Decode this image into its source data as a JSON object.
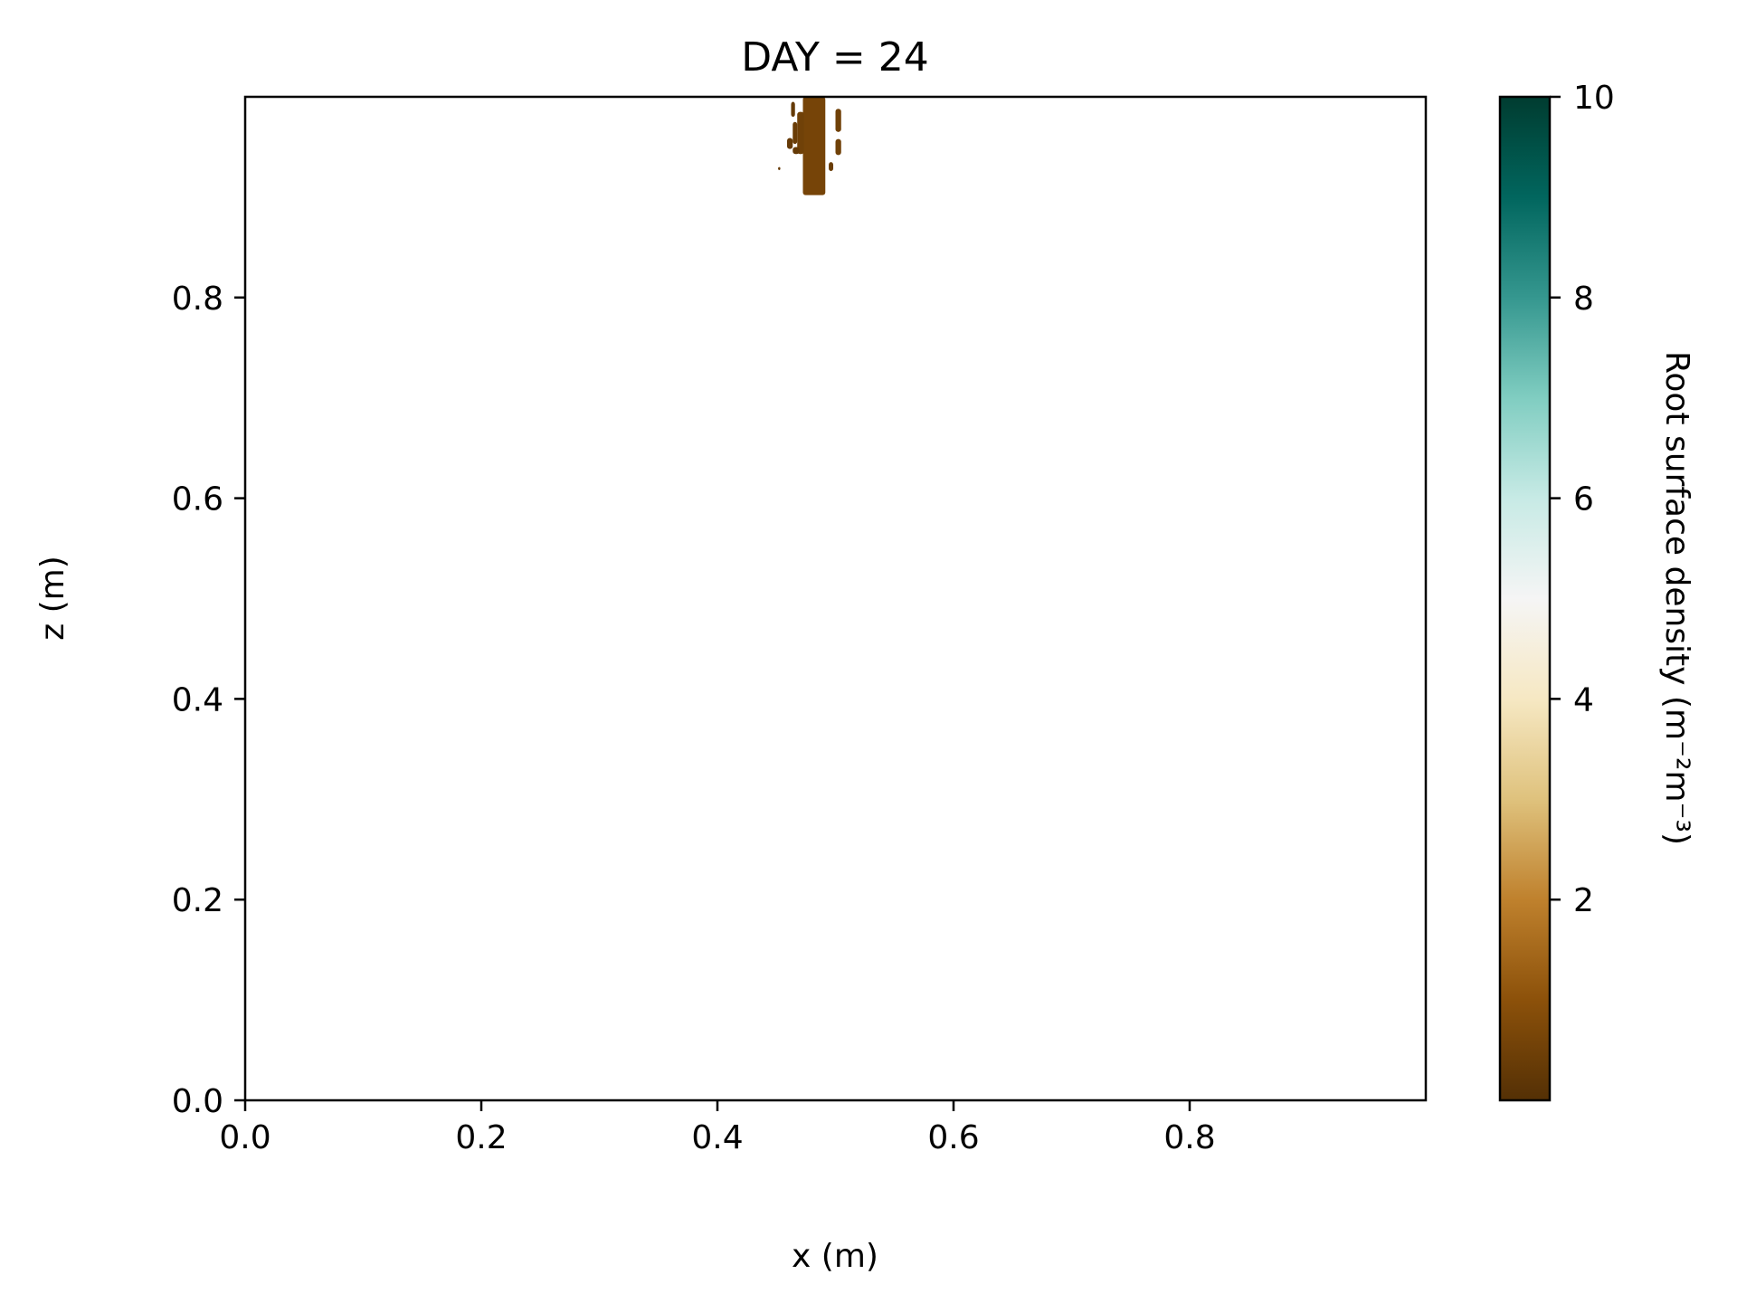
{
  "chart_data": {
    "type": "heatmap",
    "title": "DAY = 24",
    "xlabel": "x (m)",
    "ylabel": "z (m)",
    "xlim": [
      0.0,
      1.0
    ],
    "ylim": [
      0.0,
      1.0
    ],
    "x_ticks": [
      0.0,
      0.2,
      0.4,
      0.6,
      0.8
    ],
    "x_tick_labels": [
      "0.0",
      "0.2",
      "0.4",
      "0.6",
      "0.8"
    ],
    "y_ticks": [
      0.0,
      0.2,
      0.4,
      0.6,
      0.8
    ],
    "y_tick_labels": [
      "0.0",
      "0.2",
      "0.4",
      "0.6",
      "0.8"
    ],
    "grid": false,
    "colormap": "BrBG",
    "colorbar": {
      "label": "Root surface density (m⁻²m⁻³)",
      "range": [
        0,
        10
      ],
      "ticks": [
        2,
        4,
        6,
        8,
        10
      ],
      "tick_labels": [
        "2",
        "4",
        "6",
        "8",
        "10"
      ],
      "colors": [
        "#543005",
        "#8c510a",
        "#bf812d",
        "#dfc27d",
        "#f6e8c3",
        "#f5f5f5",
        "#c7eae5",
        "#80cdc1",
        "#35978f",
        "#01665e",
        "#003c30"
      ]
    },
    "regions": [
      {
        "x0": 0.4724,
        "x1": 0.4914,
        "z0": 0.902,
        "z1": 1.0,
        "value": 0.6
      },
      {
        "x0": 0.4676,
        "x1": 0.4733,
        "z0": 0.943,
        "z1": 0.985,
        "value": 0.5
      },
      {
        "x0": 0.4638,
        "x1": 0.4676,
        "z0": 0.953,
        "z1": 0.975,
        "value": 0.4
      },
      {
        "x0": 0.4624,
        "x1": 0.4657,
        "z0": 0.98,
        "z1": 0.995,
        "value": 0.3
      },
      {
        "x0": 0.459,
        "x1": 0.4638,
        "z0": 0.948,
        "z1": 0.959,
        "value": 0.3
      },
      {
        "x0": 0.4638,
        "x1": 0.4695,
        "z0": 0.943,
        "z1": 0.95,
        "value": 0.3
      },
      {
        "x0": 0.5,
        "x1": 0.5048,
        "z0": 0.965,
        "z1": 0.988,
        "value": 0.5
      },
      {
        "x0": 0.5,
        "x1": 0.5048,
        "z0": 0.942,
        "z1": 0.958,
        "value": 0.5
      },
      {
        "x0": 0.4943,
        "x1": 0.4981,
        "z0": 0.926,
        "z1": 0.935,
        "value": 0.4
      },
      {
        "x0": 0.4514,
        "x1": 0.4533,
        "z0": 0.927,
        "z1": 0.93,
        "value": 0.3
      }
    ]
  }
}
